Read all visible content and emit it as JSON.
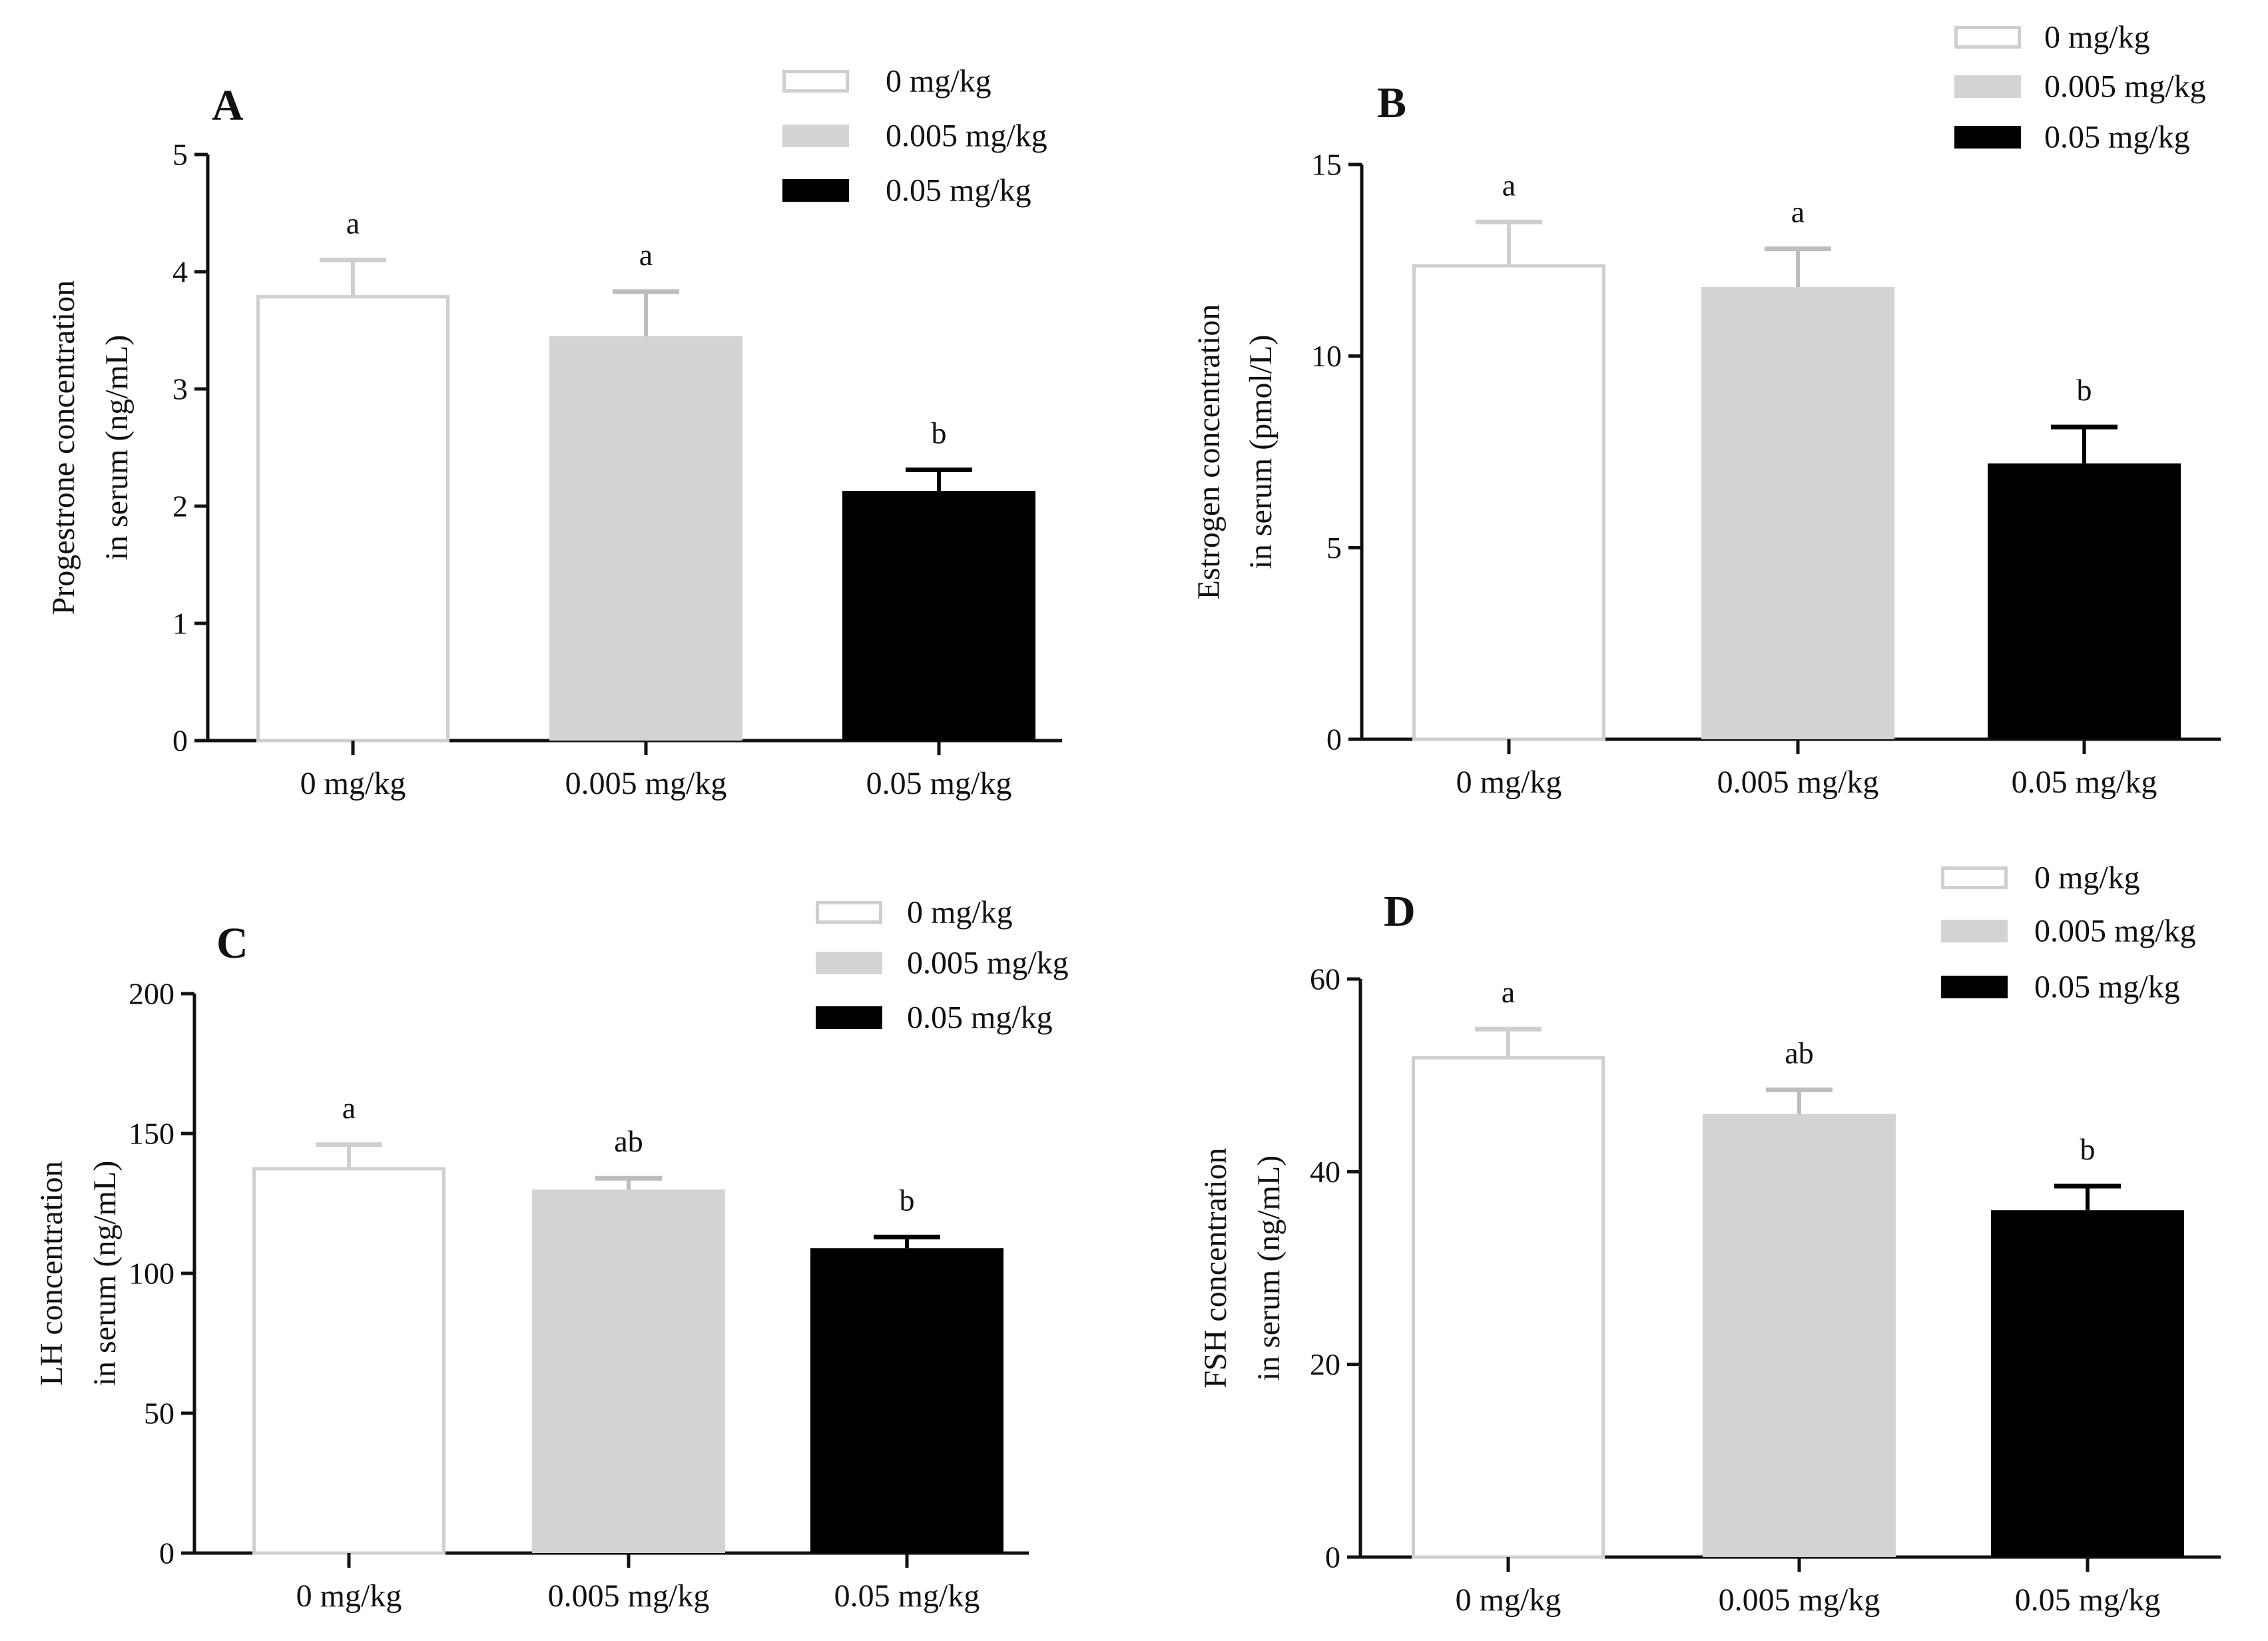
{
  "figure": {
    "colors": {
      "axis": "#111111",
      "control_fill": "#ffffff",
      "control_stroke": "#cfcfcf",
      "low_dose_fill": "#d3d3d3",
      "high_dose_fill": "#000000"
    }
  },
  "chart_data": [
    {
      "panel": "A",
      "type": "bar",
      "categories": [
        "0 mg/kg",
        "0.005 mg/kg",
        "0.05 mg/kg"
      ],
      "values": [
        3.8,
        3.45,
        2.13
      ],
      "errors": [
        0.3,
        0.38,
        0.18
      ],
      "significance": [
        "a",
        "a",
        "b"
      ],
      "legend": [
        "0 mg/kg",
        "0.005 mg/kg",
        "0.05 mg/kg"
      ],
      "ylabel_lines": [
        "Progestrone concentration",
        "in serum (ng/mL)"
      ],
      "ylim": [
        0,
        5
      ],
      "yticks": [
        0,
        1,
        2,
        3,
        4,
        5
      ],
      "ytick_labels": [
        "0",
        "1",
        "2",
        "3",
        "4",
        "5"
      ]
    },
    {
      "panel": "B",
      "type": "bar",
      "categories": [
        "0 mg/kg",
        "0.005 mg/kg",
        "0.05 mg/kg"
      ],
      "values": [
        12.4,
        11.8,
        7.2
      ],
      "errors": [
        1.1,
        1.0,
        0.95
      ],
      "significance": [
        "a",
        "a",
        "b"
      ],
      "legend": [
        "0 mg/kg",
        "0.005 mg/kg",
        "0.05 mg/kg"
      ],
      "ylabel_lines": [
        "Estrogen concentration",
        "in serum (pmol/L)"
      ],
      "ylim": [
        0,
        15
      ],
      "yticks": [
        0,
        5,
        10,
        15
      ],
      "ytick_labels": [
        "0",
        "5",
        "10",
        "15"
      ]
    },
    {
      "panel": "C",
      "type": "bar",
      "categories": [
        "0 mg/kg",
        "0.005 mg/kg",
        "0.05 mg/kg"
      ],
      "values": [
        138,
        130,
        109
      ],
      "errors": [
        8,
        4,
        4
      ],
      "significance": [
        "a",
        "ab",
        "b"
      ],
      "legend": [
        "0 mg/kg",
        "0.005 mg/kg",
        "0.05 mg/kg"
      ],
      "ylabel_lines": [
        "LH concentration",
        "in serum (ng/mL)"
      ],
      "ylim": [
        0,
        200
      ],
      "yticks": [
        0,
        50,
        100,
        150,
        200
      ],
      "ytick_labels": [
        "0",
        "50",
        "100",
        "150",
        "200"
      ]
    },
    {
      "panel": "D",
      "type": "bar",
      "categories": [
        "0 mg/kg",
        "0.005 mg/kg",
        "0.05 mg/kg"
      ],
      "values": [
        52,
        46,
        36
      ],
      "errors": [
        2.8,
        2.5,
        2.5
      ],
      "significance": [
        "a",
        "ab",
        "b"
      ],
      "legend": [
        "0 mg/kg",
        "0.005 mg/kg",
        "0.05 mg/kg"
      ],
      "ylabel_lines": [
        "FSH concentration",
        "in serum (ng/mL)"
      ],
      "ylim": [
        0,
        60
      ],
      "yticks": [
        0,
        20,
        40,
        60
      ],
      "ytick_labels": [
        "0",
        "20",
        "40",
        "60"
      ]
    }
  ]
}
